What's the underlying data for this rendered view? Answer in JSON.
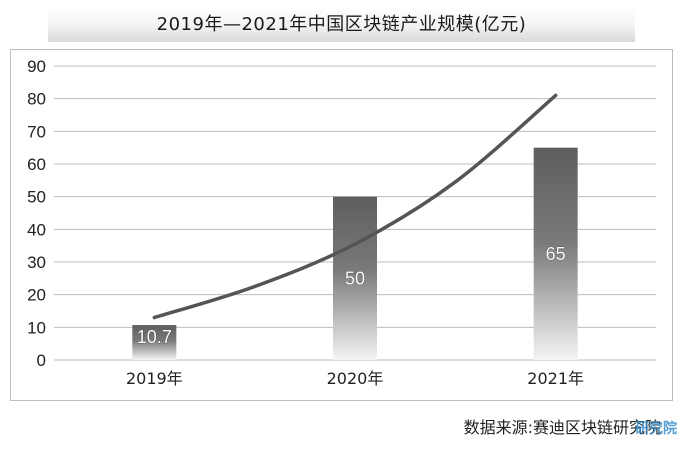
{
  "chart_data": {
    "type": "bar",
    "title": "2019年—2021年中国区块链产业规模(亿元)",
    "categories": [
      "2019年",
      "2020年",
      "2021年"
    ],
    "values": [
      10.7,
      50,
      65
    ],
    "data_labels": [
      "10.7",
      "50",
      "65"
    ],
    "ylim": [
      0,
      90
    ],
    "yticks": [
      0,
      10,
      20,
      30,
      40,
      50,
      60,
      70,
      80,
      90
    ],
    "ytick_labels": [
      "0",
      "10",
      "20",
      "30",
      "40",
      "50",
      "60",
      "70",
      "80",
      "90"
    ],
    "grid": true,
    "trend_line": {
      "type": "curve",
      "points": [
        [
          0.0,
          13.0
        ],
        [
          0.5,
          22.5
        ],
        [
          1.0,
          35.5
        ],
        [
          1.5,
          54.5
        ],
        [
          2.0,
          81.0
        ]
      ]
    },
    "bar_color": "#6b6b6b",
    "trend_color": "#555555"
  },
  "source_note": "数据来源:赛迪区块链研究院",
  "watermark": "研究院"
}
